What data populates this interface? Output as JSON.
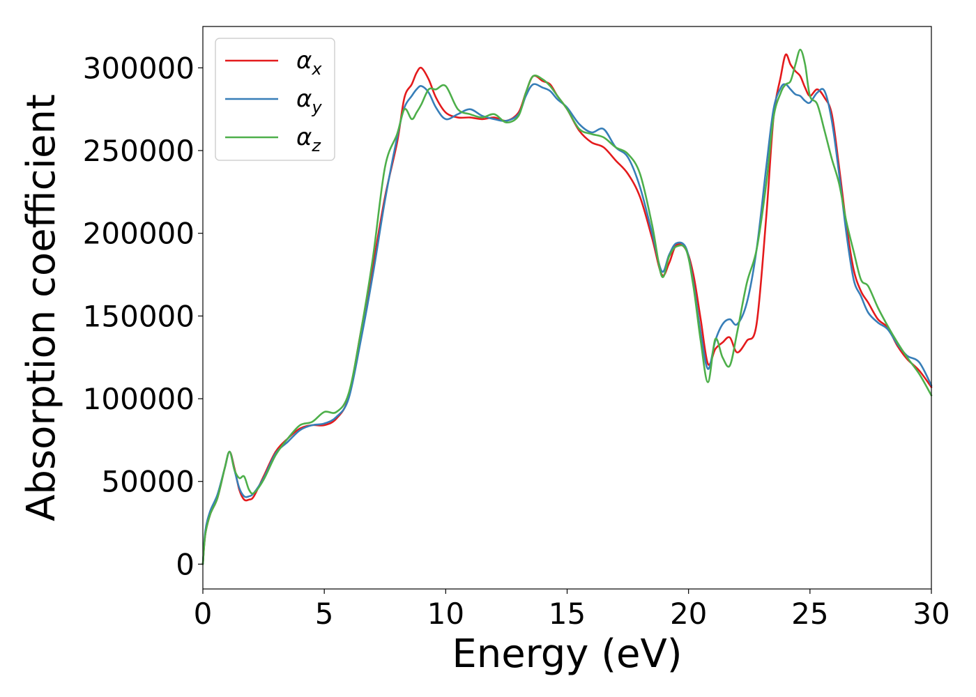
{
  "chart_data": {
    "type": "line",
    "title": "",
    "xlabel": "Energy (eV)",
    "ylabel": "Absorption coefficient",
    "xlim": [
      0,
      30
    ],
    "ylim": [
      -15000,
      325000
    ],
    "xticks": [
      0,
      5,
      10,
      15,
      20,
      25,
      30
    ],
    "xtick_labels": [
      "0",
      "5",
      "10",
      "15",
      "20",
      "25",
      "30"
    ],
    "yticks": [
      0,
      50000,
      100000,
      150000,
      200000,
      250000,
      300000
    ],
    "ytick_labels": [
      "0",
      "50000",
      "100000",
      "150000",
      "200000",
      "250000",
      "300000"
    ],
    "grid": false,
    "legend_position": "top-left",
    "series": [
      {
        "name": "αx",
        "symbol": "α",
        "subscript": "x",
        "color": "#e41a1c",
        "x": [
          0,
          0.1,
          0.3,
          0.6,
          0.9,
          1.1,
          1.3,
          1.5,
          1.7,
          1.9,
          2.1,
          2.5,
          3.0,
          3.5,
          4.0,
          4.5,
          5.0,
          5.5,
          6.0,
          6.5,
          7.0,
          7.5,
          8.0,
          8.3,
          8.6,
          8.8,
          9.0,
          9.3,
          9.6,
          10.0,
          10.5,
          11.0,
          11.5,
          12.0,
          12.5,
          13.0,
          13.3,
          13.6,
          14.0,
          14.3,
          14.6,
          15.0,
          15.5,
          16.0,
          16.5,
          17.0,
          17.5,
          18.0,
          18.5,
          18.9,
          19.2,
          19.5,
          19.9,
          20.2,
          20.5,
          20.8,
          21.1,
          21.4,
          21.7,
          22.0,
          22.4,
          22.8,
          23.2,
          23.5,
          23.8,
          24.0,
          24.2,
          24.4,
          24.6,
          24.8,
          25.0,
          25.3,
          25.6,
          25.9,
          26.2,
          26.5,
          26.8,
          27.1,
          27.4,
          27.8,
          28.2,
          28.6,
          29.0,
          29.5,
          30.0
        ],
        "y": [
          0,
          18000,
          30000,
          40000,
          58000,
          68000,
          58000,
          45000,
          39000,
          39000,
          41000,
          53000,
          68000,
          76000,
          82000,
          84000,
          84000,
          88000,
          101000,
          140000,
          180000,
          222000,
          255000,
          282000,
          290000,
          297000,
          300000,
          293000,
          282000,
          273000,
          270000,
          270000,
          269000,
          270000,
          268000,
          273000,
          285000,
          295000,
          292000,
          290000,
          283000,
          275000,
          262000,
          255000,
          252000,
          244000,
          236000,
          222000,
          197000,
          175000,
          182000,
          193000,
          190000,
          175000,
          148000,
          121000,
          130000,
          134000,
          137000,
          128000,
          135000,
          145000,
          210000,
          270000,
          295000,
          308000,
          302000,
          298000,
          295000,
          288000,
          283000,
          287000,
          282000,
          272000,
          240000,
          205000,
          178000,
          165000,
          158000,
          148000,
          143000,
          132000,
          124000,
          117000,
          107000
        ]
      },
      {
        "name": "αy",
        "symbol": "α",
        "subscript": "y",
        "color": "#377eb8",
        "x": [
          0,
          0.1,
          0.3,
          0.6,
          0.9,
          1.1,
          1.3,
          1.5,
          1.7,
          1.9,
          2.1,
          2.5,
          3.0,
          3.5,
          4.0,
          4.5,
          5.0,
          5.5,
          6.0,
          6.5,
          7.0,
          7.5,
          8.0,
          8.3,
          8.6,
          8.8,
          9.0,
          9.3,
          9.6,
          10.0,
          10.5,
          11.0,
          11.5,
          12.0,
          12.5,
          13.0,
          13.3,
          13.6,
          14.0,
          14.3,
          14.6,
          15.0,
          15.5,
          16.0,
          16.5,
          17.0,
          17.5,
          18.0,
          18.5,
          18.9,
          19.2,
          19.5,
          19.9,
          20.2,
          20.5,
          20.8,
          21.1,
          21.4,
          21.7,
          22.0,
          22.4,
          22.8,
          23.2,
          23.5,
          23.8,
          24.0,
          24.2,
          24.4,
          24.6,
          24.8,
          25.0,
          25.3,
          25.6,
          25.9,
          26.2,
          26.5,
          26.8,
          27.1,
          27.4,
          27.8,
          28.2,
          28.6,
          29.0,
          29.5,
          30.0
        ],
        "y": [
          0,
          20000,
          32000,
          42000,
          58000,
          68000,
          57000,
          46000,
          41000,
          41000,
          43000,
          52000,
          67000,
          74000,
          81000,
          84000,
          85000,
          89000,
          100000,
          135000,
          175000,
          220000,
          258000,
          276000,
          283000,
          287000,
          289000,
          285000,
          276000,
          269000,
          272000,
          275000,
          271000,
          269000,
          268000,
          272000,
          283000,
          290000,
          288000,
          286000,
          281000,
          276000,
          266000,
          261000,
          263000,
          252000,
          246000,
          228000,
          200000,
          177000,
          187000,
          194000,
          191000,
          170000,
          140000,
          118000,
          135000,
          145000,
          148000,
          145000,
          158000,
          190000,
          240000,
          275000,
          288000,
          290000,
          287000,
          284000,
          283000,
          280000,
          279000,
          285000,
          286000,
          268000,
          236000,
          200000,
          172000,
          162000,
          152000,
          146000,
          142000,
          133000,
          126000,
          122000,
          108000
        ]
      },
      {
        "name": "αz",
        "symbol": "α",
        "subscript": "z",
        "color": "#4daf4a",
        "x": [
          0,
          0.1,
          0.3,
          0.6,
          0.9,
          1.1,
          1.3,
          1.5,
          1.7,
          1.9,
          2.1,
          2.5,
          3.0,
          3.5,
          4.0,
          4.5,
          5.0,
          5.5,
          6.0,
          6.5,
          7.0,
          7.5,
          8.0,
          8.3,
          8.6,
          8.8,
          9.0,
          9.3,
          9.6,
          10.0,
          10.5,
          11.0,
          11.5,
          12.0,
          12.5,
          13.0,
          13.3,
          13.6,
          14.0,
          14.3,
          14.6,
          15.0,
          15.5,
          16.0,
          16.5,
          17.0,
          17.5,
          18.0,
          18.5,
          18.9,
          19.2,
          19.5,
          19.9,
          20.2,
          20.5,
          20.8,
          21.1,
          21.4,
          21.7,
          22.0,
          22.4,
          22.8,
          23.2,
          23.5,
          23.8,
          24.0,
          24.2,
          24.4,
          24.6,
          24.8,
          25.0,
          25.3,
          25.6,
          25.9,
          26.2,
          26.5,
          26.8,
          27.1,
          27.4,
          27.8,
          28.2,
          28.6,
          29.0,
          29.5,
          30.0
        ],
        "y": [
          0,
          18000,
          30000,
          40000,
          58000,
          68000,
          57000,
          52000,
          53000,
          45000,
          43000,
          51000,
          66000,
          76000,
          84000,
          86000,
          92000,
          92000,
          103000,
          140000,
          185000,
          240000,
          260000,
          275000,
          269000,
          273000,
          278000,
          287000,
          287000,
          289000,
          275000,
          272000,
          270000,
          272000,
          267000,
          271000,
          285000,
          295000,
          293000,
          289000,
          283000,
          275000,
          263000,
          260000,
          258000,
          252000,
          248000,
          236000,
          205000,
          174000,
          186000,
          192000,
          190000,
          168000,
          135000,
          110000,
          136000,
          125000,
          120000,
          140000,
          170000,
          190000,
          230000,
          270000,
          285000,
          290000,
          292000,
          302000,
          311000,
          302000,
          283000,
          278000,
          262000,
          245000,
          230000,
          207000,
          189000,
          172000,
          168000,
          155000,
          144000,
          134000,
          125000,
          115000,
          102000
        ]
      }
    ]
  }
}
